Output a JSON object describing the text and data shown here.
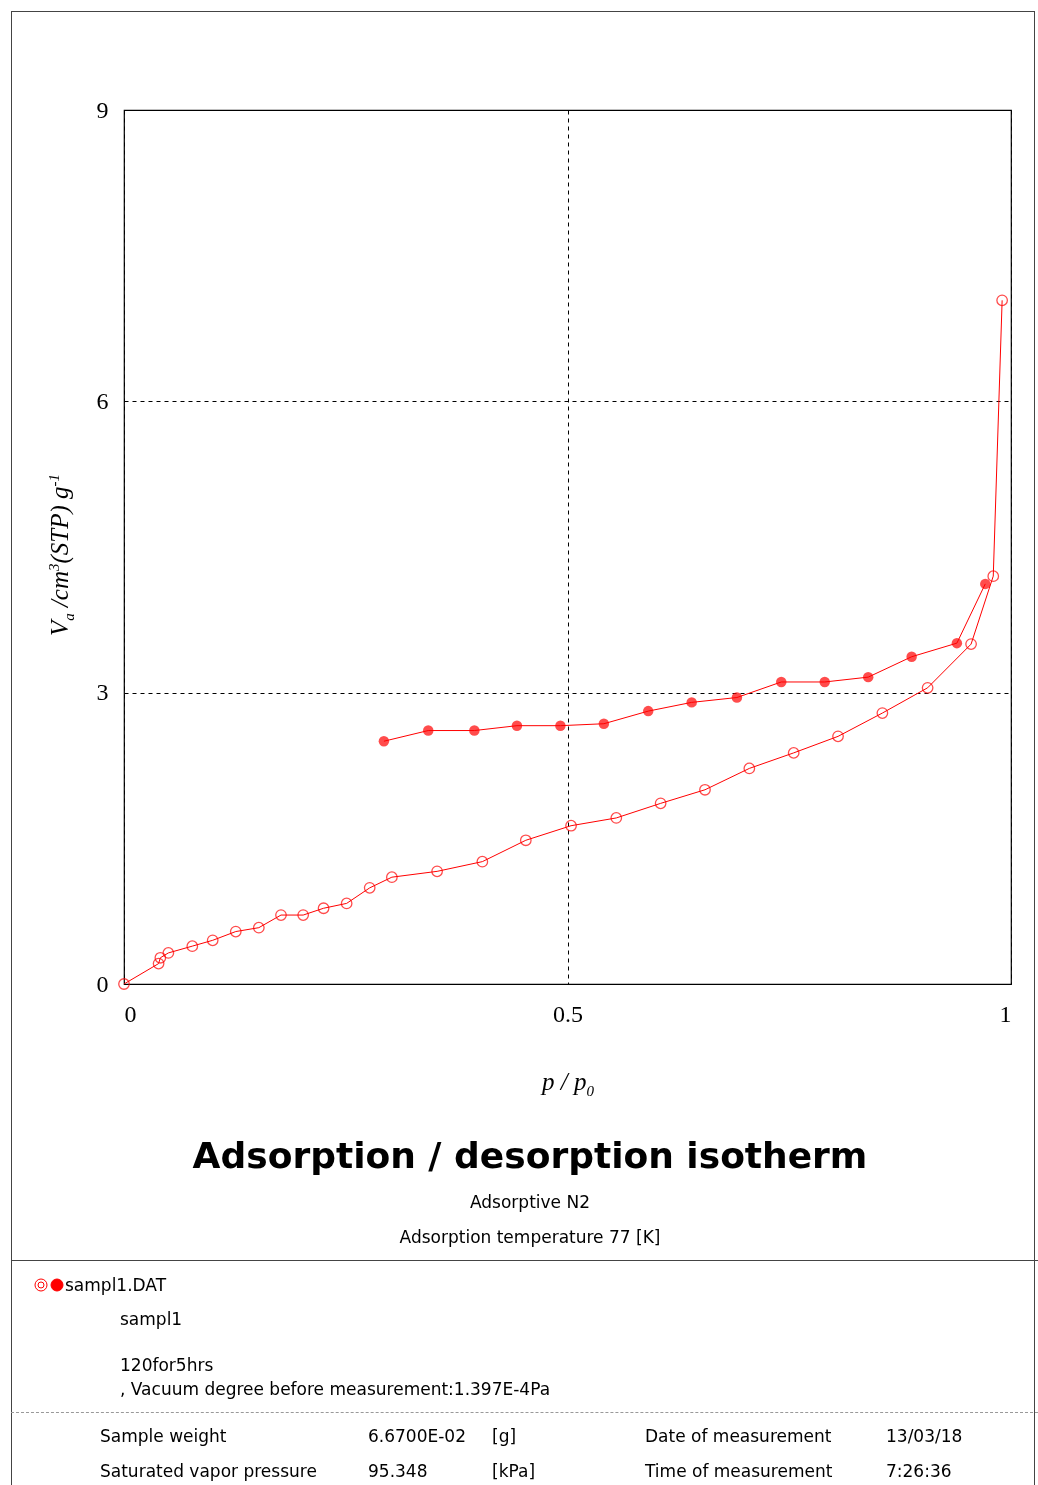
{
  "chart_data": {
    "type": "line",
    "title": "Adsorption / desorption isotherm",
    "xlabel": "p / p$_{0}$",
    "ylabel": "V$_{a}$ /cm$^{3}$(STP) g$^{-1}$",
    "xlim": [
      0,
      1
    ],
    "xticks": [
      0,
      0.5,
      1
    ],
    "ylim": [
      0,
      9
    ],
    "yticks": [
      0,
      3,
      6,
      9
    ],
    "grid": true,
    "line_style": "solid",
    "marker": "circle",
    "legend": "bottom left",
    "series": [
      {
        "name": "sampl1.DAT",
        "color": "#ff0000",
        "x": [
          0,
          0.039,
          0.041,
          0.05,
          0.077,
          0.1,
          0.126,
          0.152,
          0.177,
          0.202,
          0.225,
          0.251,
          0.277,
          0.302,
          0.353,
          0.404,
          0.453,
          0.504,
          0.555,
          0.605,
          0.655,
          0.705,
          0.755,
          0.805,
          0.855,
          0.906,
          0.955,
          0.98,
          0.99
        ],
        "values": [
          0,
          0.21,
          0.27,
          0.32,
          0.39,
          0.45,
          0.54,
          0.58,
          0.71,
          0.71,
          0.78,
          0.83,
          0.99,
          1.1,
          1.16,
          1.26,
          1.48,
          1.63,
          1.71,
          1.86,
          2.0,
          2.22,
          2.38,
          2.55,
          2.79,
          3.05,
          3.5,
          4.2,
          7.04
        ]
      },
      {
        "color": "#ff0000",
        "x": [
          0.971,
          0.939,
          0.888,
          0.839,
          0.79,
          0.741,
          0.691,
          0.64,
          0.591,
          0.541,
          0.492,
          0.443,
          0.395,
          0.343,
          0.293
        ],
        "values": [
          4.12,
          3.51,
          3.37,
          3.16,
          3.11,
          3.11,
          2.95,
          2.9,
          2.81,
          2.68,
          2.66,
          2.66,
          2.61,
          2.61,
          2.5
        ]
      }
    ],
    "annotations": [
      "Adsorptive N2",
      "Adsorption temperature 77 [K]",
      "sampl1",
      "120for5hrs",
      ", Vacuum degree before measurement:1.397E-4Pa",
      "Sample weight",
      "6.6700E-02",
      "[g]",
      "Date of measurement",
      "13/03/18",
      "Saturated vapor pressure",
      "95.348",
      "[kPa]",
      "Time of measurement",
      "7:26:36"
    ]
  }
}
